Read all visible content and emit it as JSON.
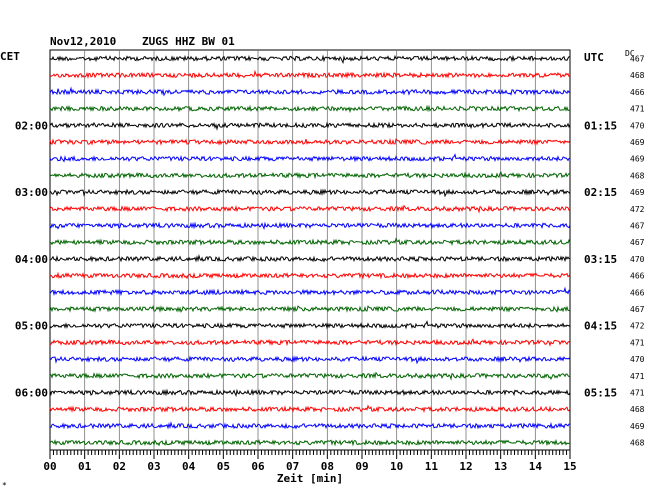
{
  "header": {
    "date": "Nov12,2010",
    "station": "ZUGS HHZ BW 01",
    "left_tz": "CET",
    "right_tz": "UTC",
    "dc_label": "DC",
    "footnote": "*"
  },
  "chart_data": {
    "type": "line",
    "title": "Nov12,2010   ZUGS HHZ BW 01",
    "xlabel": "Zeit [min]",
    "ylabel": "",
    "x_ticks": [
      "00",
      "01",
      "02",
      "03",
      "04",
      "05",
      "06",
      "07",
      "08",
      "09",
      "10",
      "11",
      "12",
      "13",
      "14",
      "15"
    ],
    "xlim": [
      0,
      15
    ],
    "left_hour_labels": [
      {
        "trace": 4,
        "label": "02:00"
      },
      {
        "trace": 8,
        "label": "03:00"
      },
      {
        "trace": 12,
        "label": "04:00"
      },
      {
        "trace": 16,
        "label": "05:00"
      },
      {
        "trace": 20,
        "label": "06:00"
      }
    ],
    "right_hour_labels": [
      {
        "trace": 4,
        "label": "01:15"
      },
      {
        "trace": 8,
        "label": "02:15"
      },
      {
        "trace": 12,
        "label": "03:15"
      },
      {
        "trace": 16,
        "label": "04:15"
      },
      {
        "trace": 20,
        "label": "05:15"
      }
    ],
    "trace_colors": [
      "#000000",
      "#ff0000",
      "#0000ff",
      "#006400"
    ],
    "dc_values": [
      "467",
      "468",
      "466",
      "471",
      "470",
      "469",
      "469",
      "468",
      "469",
      "472",
      "467",
      "467",
      "470",
      "466",
      "466",
      "467",
      "472",
      "471",
      "470",
      "471",
      "471",
      "468",
      "469",
      "468"
    ]
  }
}
